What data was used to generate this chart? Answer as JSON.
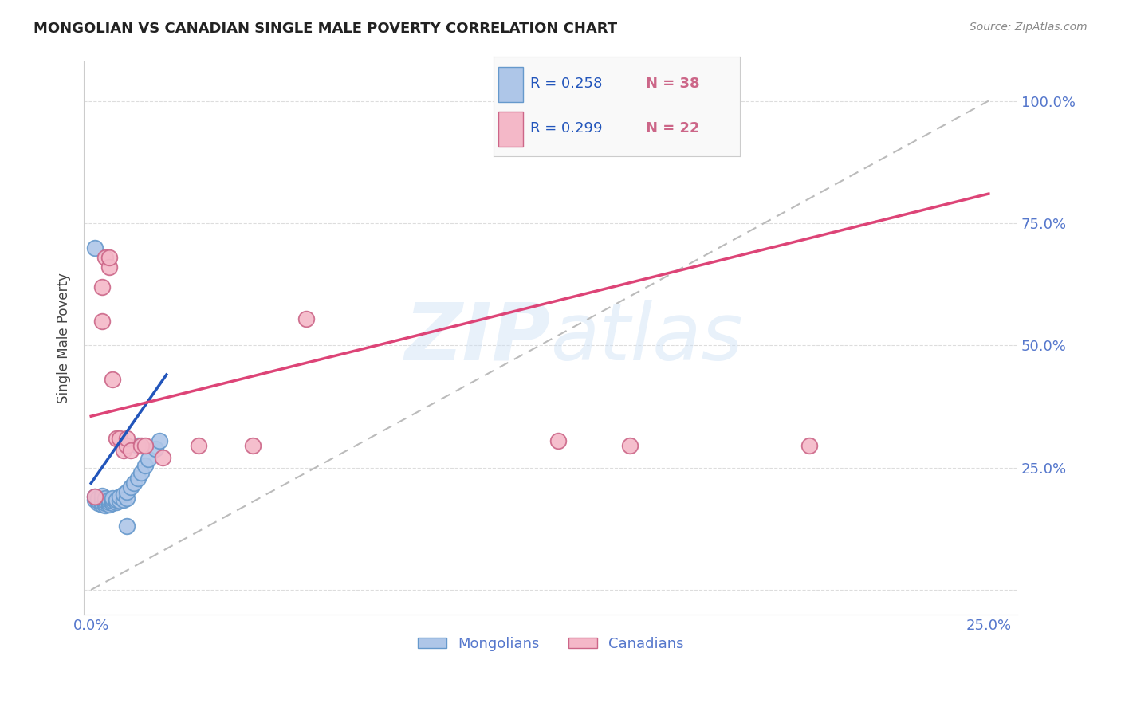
{
  "title": "MONGOLIAN VS CANADIAN SINGLE MALE POVERTY CORRELATION CHART",
  "source": "Source: ZipAtlas.com",
  "ylabel": "Single Male Poverty",
  "mongolian_color": "#aec6e8",
  "canadian_color": "#f4b8c8",
  "mongolian_edge": "#6699cc",
  "canadian_edge": "#cc6688",
  "blue_line_color": "#2255bb",
  "pink_line_color": "#dd4477",
  "dashed_line_color": "#bbbbbb",
  "tick_color": "#5577cc",
  "background_color": "#ffffff",
  "grid_color": "#dddddd",
  "mongolian_R": 0.258,
  "mongolian_N": 38,
  "canadian_R": 0.299,
  "canadian_N": 22,
  "mongolians": [
    [
      0.001,
      0.185
    ],
    [
      0.001,
      0.19
    ],
    [
      0.002,
      0.178
    ],
    [
      0.002,
      0.183
    ],
    [
      0.002,
      0.188
    ],
    [
      0.003,
      0.175
    ],
    [
      0.003,
      0.18
    ],
    [
      0.003,
      0.186
    ],
    [
      0.003,
      0.192
    ],
    [
      0.004,
      0.172
    ],
    [
      0.004,
      0.178
    ],
    [
      0.004,
      0.183
    ],
    [
      0.004,
      0.188
    ],
    [
      0.005,
      0.175
    ],
    [
      0.005,
      0.18
    ],
    [
      0.005,
      0.185
    ],
    [
      0.006,
      0.178
    ],
    [
      0.006,
      0.183
    ],
    [
      0.006,
      0.188
    ],
    [
      0.007,
      0.18
    ],
    [
      0.007,
      0.185
    ],
    [
      0.008,
      0.182
    ],
    [
      0.008,
      0.19
    ],
    [
      0.009,
      0.185
    ],
    [
      0.009,
      0.195
    ],
    [
      0.01,
      0.188
    ],
    [
      0.01,
      0.2
    ],
    [
      0.011,
      0.21
    ],
    [
      0.012,
      0.218
    ],
    [
      0.013,
      0.228
    ],
    [
      0.013,
      0.295
    ],
    [
      0.014,
      0.24
    ],
    [
      0.015,
      0.255
    ],
    [
      0.016,
      0.268
    ],
    [
      0.018,
      0.288
    ],
    [
      0.019,
      0.305
    ],
    [
      0.01,
      0.13
    ],
    [
      0.001,
      0.7
    ]
  ],
  "canadians": [
    [
      0.001,
      0.19
    ],
    [
      0.003,
      0.55
    ],
    [
      0.003,
      0.62
    ],
    [
      0.004,
      0.68
    ],
    [
      0.005,
      0.66
    ],
    [
      0.005,
      0.68
    ],
    [
      0.006,
      0.43
    ],
    [
      0.007,
      0.31
    ],
    [
      0.008,
      0.31
    ],
    [
      0.009,
      0.285
    ],
    [
      0.01,
      0.295
    ],
    [
      0.01,
      0.31
    ],
    [
      0.011,
      0.285
    ],
    [
      0.014,
      0.295
    ],
    [
      0.015,
      0.295
    ],
    [
      0.02,
      0.27
    ],
    [
      0.06,
      0.555
    ],
    [
      0.13,
      0.305
    ],
    [
      0.15,
      0.295
    ],
    [
      0.2,
      0.295
    ],
    [
      0.03,
      0.295
    ],
    [
      0.045,
      0.295
    ]
  ],
  "blue_line_x": [
    0.0,
    0.021
  ],
  "blue_line_y": [
    0.218,
    0.44
  ],
  "pink_line_x": [
    0.0,
    0.25
  ],
  "pink_line_y": [
    0.355,
    0.81
  ],
  "dash_line_x": [
    0.0,
    0.25
  ],
  "dash_line_y": [
    0.0,
    1.0
  ],
  "xlim": [
    -0.002,
    0.258
  ],
  "ylim": [
    -0.05,
    1.08
  ],
  "xtick_pos": [
    0.0,
    0.05,
    0.1,
    0.15,
    0.2,
    0.25
  ],
  "xtick_labels": [
    "0.0%",
    "",
    "",
    "",
    "",
    "25.0%"
  ],
  "ytick_right_pos": [
    0.0,
    0.25,
    0.5,
    0.75,
    1.0
  ],
  "ytick_right_labels": [
    "",
    "25.0%",
    "50.0%",
    "75.0%",
    "100.0%"
  ]
}
